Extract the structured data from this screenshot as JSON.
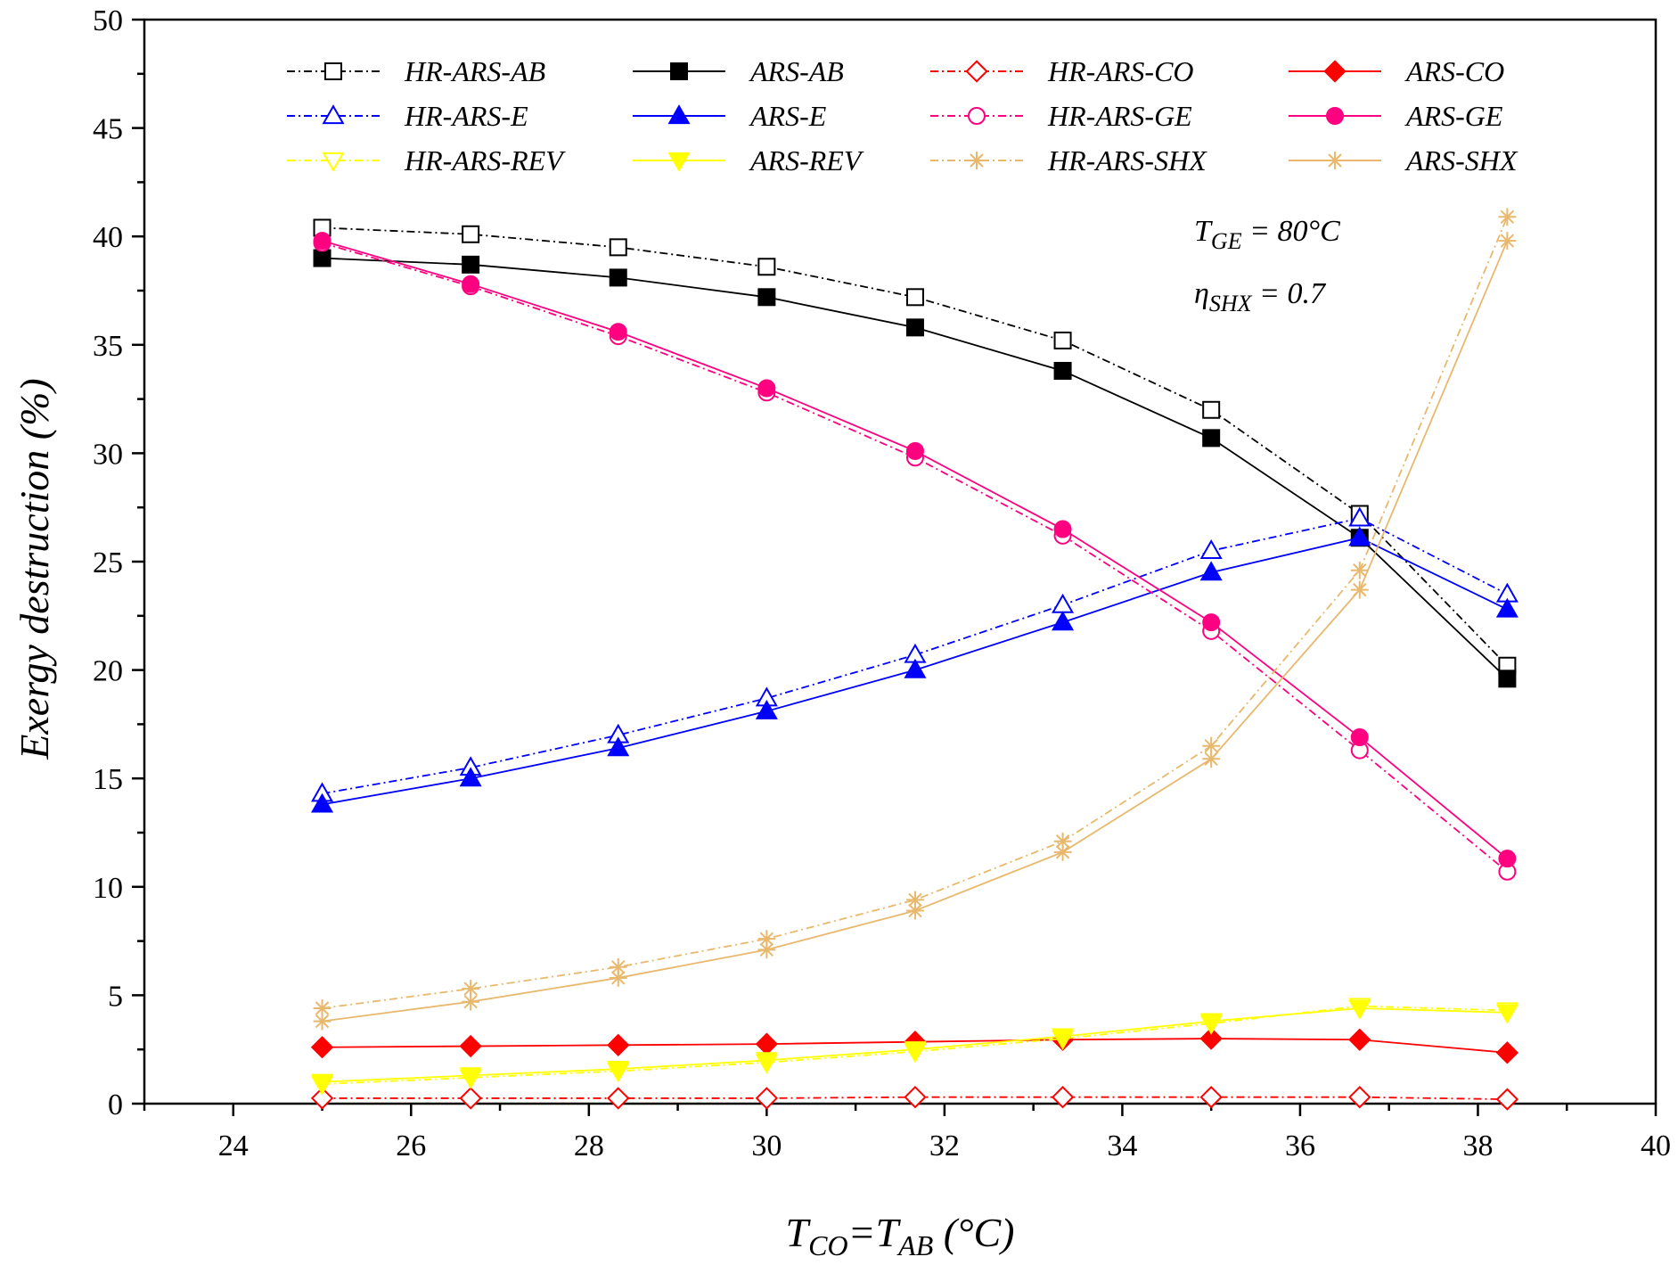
{
  "chart_data": {
    "type": "line",
    "xlabel": {
      "main": "T",
      "sub1": "CO",
      "mid": "=T",
      "sub2": "AB",
      "unit": " (°C)"
    },
    "ylabel": "Exergy destruction (%)",
    "xlim": [
      23,
      40
    ],
    "ylim": [
      0,
      50
    ],
    "x_ticks": [
      24,
      26,
      28,
      30,
      32,
      34,
      36,
      38,
      40
    ],
    "y_ticks": [
      0,
      5,
      10,
      15,
      20,
      25,
      30,
      35,
      40,
      45,
      50
    ],
    "grid": false,
    "legend_position": "top",
    "annotations": [
      {
        "main": "T",
        "sub": "GE",
        "rest": " = 80°C"
      },
      {
        "main": "η",
        "sub": "SHX",
        "rest": " = 0.7"
      }
    ],
    "x": [
      25,
      26.67,
      28.33,
      30,
      31.67,
      33.33,
      35,
      36.67,
      38.33
    ],
    "series": [
      {
        "name": "HR-ARS-AB",
        "color": "#000000",
        "marker": "square",
        "filled": false,
        "dashed": true,
        "values": [
          40.4,
          40.1,
          39.5,
          38.6,
          37.2,
          35.2,
          32.0,
          27.2,
          20.2
        ]
      },
      {
        "name": "ARS-AB",
        "color": "#000000",
        "marker": "square",
        "filled": true,
        "dashed": false,
        "values": [
          39.0,
          38.7,
          38.1,
          37.2,
          35.8,
          33.8,
          30.7,
          26.1,
          19.6
        ]
      },
      {
        "name": "HR-ARS-CO",
        "color": "#ff0000",
        "marker": "diamond",
        "filled": false,
        "dashed": true,
        "values": [
          0.25,
          0.25,
          0.25,
          0.25,
          0.3,
          0.3,
          0.3,
          0.3,
          0.2
        ]
      },
      {
        "name": "ARS-CO",
        "color": "#ff0000",
        "marker": "diamond",
        "filled": true,
        "dashed": false,
        "values": [
          2.6,
          2.65,
          2.7,
          2.75,
          2.85,
          2.95,
          3.0,
          2.95,
          2.35
        ]
      },
      {
        "name": "HR-ARS-E",
        "color": "#0000ff",
        "marker": "triangle-up",
        "filled": false,
        "dashed": true,
        "values": [
          14.3,
          15.5,
          17.0,
          18.7,
          20.7,
          23.0,
          25.5,
          27.0,
          23.5
        ]
      },
      {
        "name": "ARS-E",
        "color": "#0000ff",
        "marker": "triangle-up",
        "filled": true,
        "dashed": false,
        "values": [
          13.8,
          15.0,
          16.4,
          18.1,
          20.0,
          22.2,
          24.5,
          26.1,
          22.8
        ]
      },
      {
        "name": "HR-ARS-GE",
        "color": "#ff0080",
        "marker": "circle",
        "filled": false,
        "dashed": true,
        "values": [
          39.7,
          37.7,
          35.4,
          32.8,
          29.8,
          26.2,
          21.8,
          16.3,
          10.7
        ]
      },
      {
        "name": "ARS-GE",
        "color": "#ff0080",
        "marker": "circle",
        "filled": true,
        "dashed": false,
        "values": [
          39.8,
          37.8,
          35.6,
          33.0,
          30.1,
          26.5,
          22.2,
          16.9,
          11.3
        ]
      },
      {
        "name": "HR-ARS-REV",
        "color": "#ffff00",
        "marker": "triangle-down",
        "filled": false,
        "dashed": true,
        "values": [
          0.9,
          1.2,
          1.5,
          1.9,
          2.4,
          3.0,
          3.7,
          4.5,
          4.3
        ]
      },
      {
        "name": "ARS-REV",
        "color": "#ffff00",
        "marker": "triangle-down",
        "filled": true,
        "dashed": false,
        "values": [
          1.0,
          1.3,
          1.6,
          2.0,
          2.5,
          3.1,
          3.8,
          4.4,
          4.2
        ]
      },
      {
        "name": "HR-ARS-SHX",
        "color": "#e8b86d",
        "marker": "asterisk",
        "filled": false,
        "dashed": true,
        "values": [
          4.4,
          5.3,
          6.3,
          7.6,
          9.4,
          12.1,
          16.5,
          24.6,
          40.9
        ]
      },
      {
        "name": "ARS-SHX",
        "color": "#e8b86d",
        "marker": "asterisk",
        "filled": false,
        "dashed": false,
        "values": [
          3.8,
          4.7,
          5.8,
          7.1,
          8.9,
          11.6,
          15.9,
          23.7,
          39.8
        ]
      }
    ]
  }
}
